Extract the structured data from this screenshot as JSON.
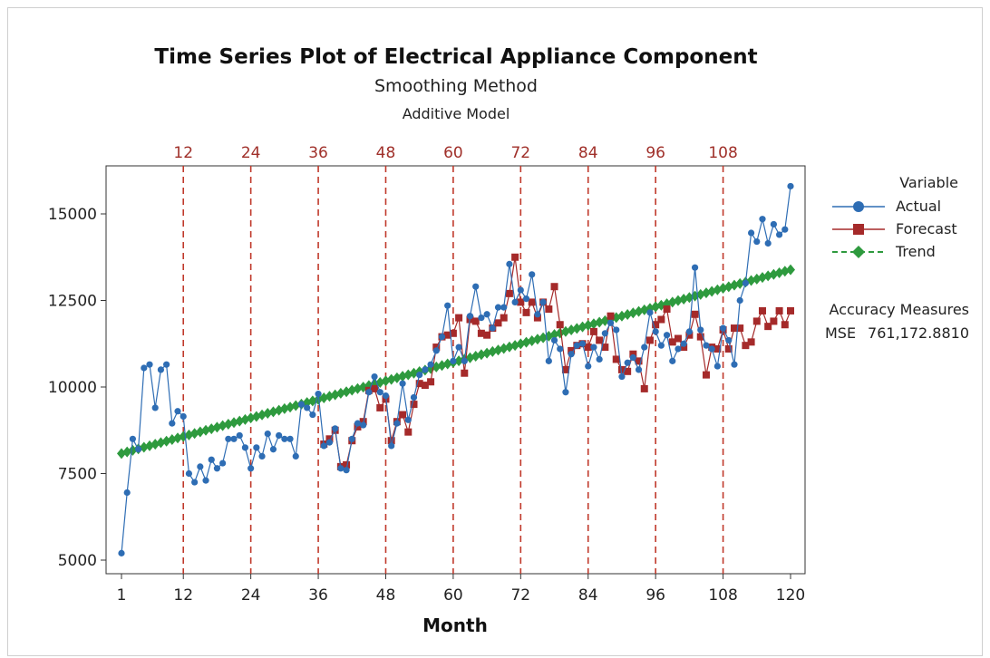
{
  "chart_data": {
    "type": "line",
    "title": "Time Series Plot of Electrical Appliance Component",
    "subtitle": "Smoothing Method",
    "model": "Additive Model",
    "xlabel": "Month",
    "ylabel": "",
    "xlim": [
      1,
      120
    ],
    "ylim": [
      4800,
      16300
    ],
    "x_ticks": [
      1,
      12,
      24,
      36,
      48,
      60,
      72,
      84,
      96,
      108,
      120
    ],
    "y_ticks": [
      5000,
      7500,
      10000,
      12500,
      15000
    ],
    "y_tick_labels": [
      "5000",
      "7500",
      "10000",
      "12500",
      "15000"
    ],
    "reference_lines": [
      12,
      24,
      36,
      48,
      60,
      72,
      84,
      96,
      108
    ],
    "reference_line_labels": [
      "12",
      "24",
      "36",
      "48",
      "60",
      "72",
      "84",
      "96",
      "108"
    ],
    "grid": false,
    "legend_title": "Variable",
    "legend_placement": "right",
    "series": [
      {
        "name": "Actual",
        "color": "#2e6db4",
        "marker": "circle",
        "values": [
          5200,
          6950,
          8500,
          8200,
          10550,
          10650,
          9400,
          10500,
          10650,
          8950,
          9300,
          9150,
          7500,
          7250,
          7700,
          7300,
          7900,
          7650,
          7800,
          8500,
          8500,
          8600,
          8250,
          7650,
          8250,
          8000,
          8650,
          8200,
          8600,
          8500,
          8500,
          8000,
          9500,
          9400,
          9200,
          9800,
          8300,
          8400,
          8800,
          7650,
          7600,
          8500,
          8950,
          8900,
          9850,
          10300,
          9850,
          9750,
          8300,
          8950,
          10100,
          9050,
          9700,
          10350,
          10500,
          10650,
          11050,
          11450,
          12350,
          10750,
          11150,
          10750,
          12050,
          12900,
          12000,
          12100,
          11700,
          12300,
          12300,
          13550,
          12450,
          12800,
          12550,
          13250,
          12100,
          12450,
          10750,
          11350,
          11100,
          9850,
          10950,
          11200,
          11250,
          10600,
          11150,
          10800,
          11550,
          11850,
          11650,
          10300,
          10700,
          10850,
          10500,
          11150,
          12150,
          11600,
          11200,
          11500,
          10750,
          11100,
          11250,
          11600,
          13450,
          11650,
          11200,
          11100,
          10600,
          11700,
          11350,
          10650,
          10800,
          12450,
          11450,
          12350,
          10600,
          11250,
          10700,
          11200,
          14700,
          12150
        ],
        "overrides_tail": [
          12500,
          13000,
          14450,
          14200,
          14850,
          14150,
          14700,
          14400,
          14550,
          15800
        ]
      },
      {
        "name": "Forecast",
        "color": "#a52a2a",
        "marker": "square",
        "start_x": 37,
        "values": [
          8350,
          8500,
          8750,
          7700,
          7750,
          8450,
          8850,
          9000,
          9900,
          9950,
          9400,
          9650,
          8450,
          9000,
          9200,
          8700,
          9500,
          10100,
          10050,
          10150,
          11150,
          11450,
          11500,
          11550,
          12000,
          10400,
          11950,
          11900,
          11550,
          11500,
          11700,
          11850,
          12000,
          12700,
          13750,
          12450,
          12150,
          12450,
          12000,
          12450,
          12250,
          12900,
          11800,
          10500,
          11050,
          11200,
          11250,
          11150,
          11600,
          11350,
          11150,
          12050,
          10800,
          10500,
          10450,
          10950,
          10750,
          9950,
          11350,
          11800,
          11950,
          12250,
          11300,
          11400,
          11150,
          11500,
          12100,
          11450,
          10350,
          11150,
          11100,
          11650,
          11100,
          11700,
          11700,
          11200,
          11300,
          11900,
          12200,
          11750,
          11900,
          12200,
          11800,
          12200
        ]
      },
      {
        "name": "Trend",
        "color": "#2e9a3e",
        "marker": "diamond",
        "start": 8080,
        "slope": 44.6,
        "values": []
      }
    ]
  },
  "accuracy": {
    "heading": "Accuracy Measures",
    "label": "MSE",
    "value": "761,172.8810"
  }
}
